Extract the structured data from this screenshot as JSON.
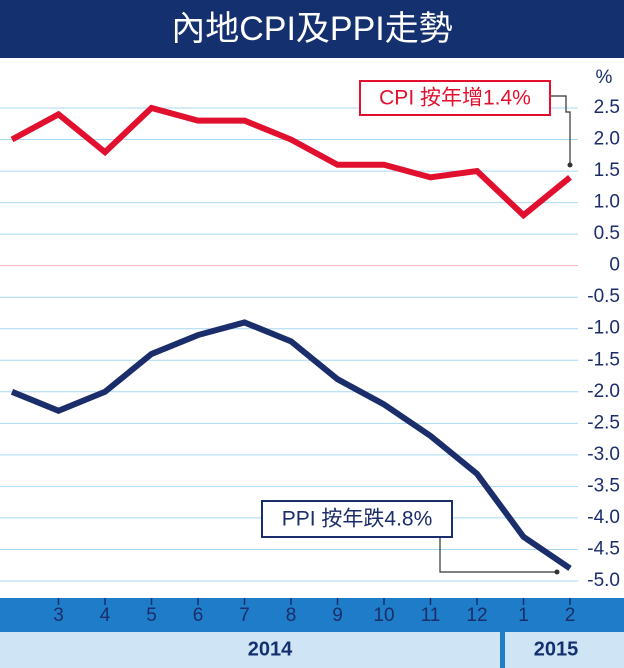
{
  "chart_data": {
    "type": "line",
    "title": "內地CPI及PPI走勢",
    "categories": [
      null,
      "3",
      "4",
      "5",
      "6",
      "7",
      "8",
      "9",
      "10",
      "11",
      "12",
      "1",
      "2"
    ],
    "year_labels": [
      "2014",
      "2015"
    ],
    "y_unit": "%",
    "series": [
      {
        "name": "CPI",
        "color": "#e2102f",
        "values": [
          2.0,
          2.4,
          1.8,
          2.5,
          2.3,
          2.3,
          2.0,
          1.6,
          1.6,
          1.4,
          1.5,
          0.8,
          1.4
        ]
      },
      {
        "name": "PPI",
        "color": "#1b2d6b",
        "values": [
          -2.0,
          -2.3,
          -2.0,
          -1.4,
          -1.1,
          -0.9,
          -1.2,
          -1.8,
          -2.2,
          -2.7,
          -3.3,
          -4.3,
          -4.8
        ]
      }
    ],
    "annotations": [
      "CPI 按年增1.4%",
      "PPI 按年跌4.8%"
    ],
    "ylim": [
      -5.0,
      2.5
    ],
    "yticks": [
      2.5,
      {
        "value": 2,
        "label": "2.0"
      },
      1.5,
      {
        "value": 1,
        "label": "1.0"
      },
      0.5,
      0,
      -0.5,
      {
        "value": -1,
        "label": "-1.0"
      },
      -1.5,
      {
        "value": -2,
        "label": "-2.0"
      },
      -2.5,
      {
        "value": -3,
        "label": "-3.0"
      },
      -3.5,
      {
        "value": -4,
        "label": "-4.0"
      },
      -4.5,
      {
        "value": -5,
        "label": "-5.0"
      }
    ],
    "grid": true,
    "grid_color": "#a9d9f2",
    "zero_color": "#e2102f"
  }
}
